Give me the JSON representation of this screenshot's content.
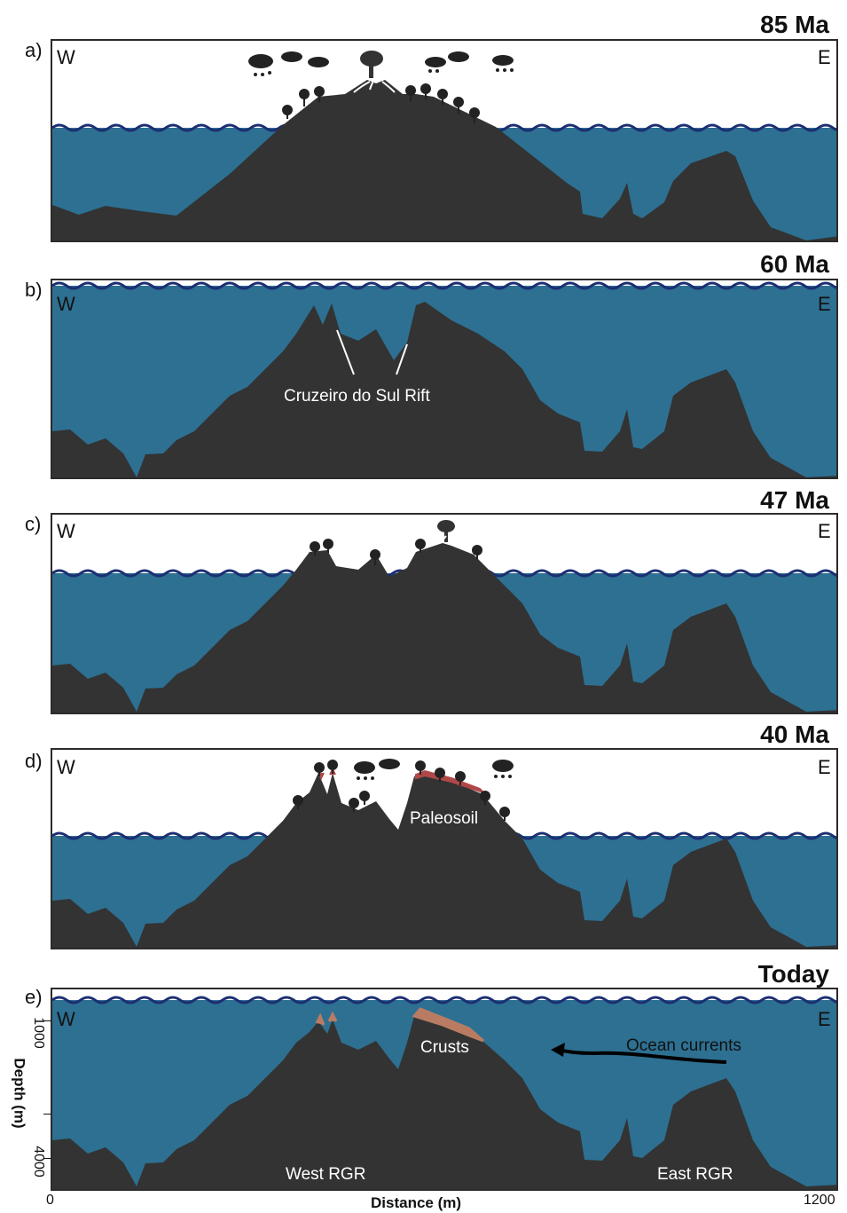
{
  "panels": [
    {
      "letter": "a)",
      "age": "85 Ma",
      "west": "W",
      "east": "E"
    },
    {
      "letter": "b)",
      "age": "60 Ma",
      "west": "W",
      "east": "E"
    },
    {
      "letter": "c)",
      "age": "47 Ma",
      "west": "W",
      "east": "E"
    },
    {
      "letter": "d)",
      "age": "40 Ma",
      "west": "W",
      "east": "E"
    },
    {
      "letter": "e)",
      "age": "Today",
      "west": "W",
      "east": "E"
    }
  ],
  "labels": {
    "rift": "Cruzeiro do Sul Rift",
    "paleosoil": "Paleosoil",
    "crusts": "Crusts",
    "currents": "Ocean currents",
    "west_rgr": "West RGR",
    "east_rgr": "East RGR"
  },
  "axes": {
    "y_label": "Depth (m)",
    "y_tick_1000": "1000",
    "y_tick_4000": "4000",
    "x_label": "Distance (m)",
    "x_tick_0": "0",
    "x_tick_1200": "1200"
  },
  "colors": {
    "ocean": "#2d7092",
    "rock": "#333333",
    "wave": "#1c2f73",
    "crust": "#b97c63",
    "paleosoil": "#b04848"
  }
}
